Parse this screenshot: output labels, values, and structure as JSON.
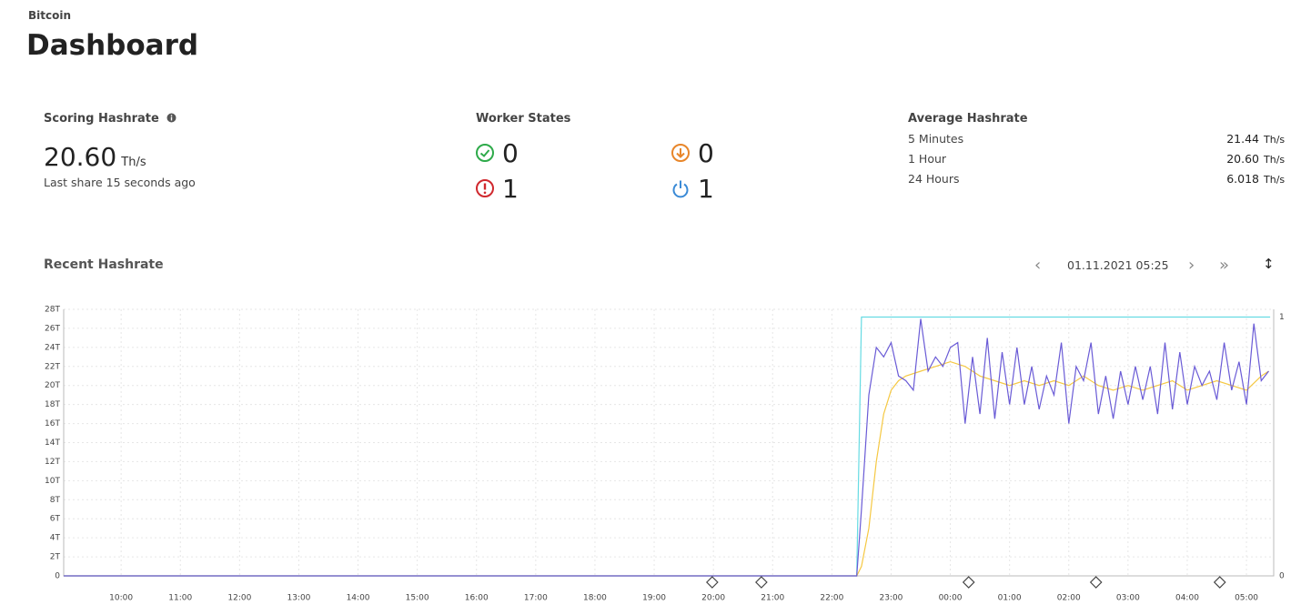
{
  "header": {
    "breadcrumb": "Bitcoin",
    "title": "Dashboard"
  },
  "scoring": {
    "label": "Scoring Hashrate",
    "value": "20.60",
    "unit": "Th/s",
    "note": "Last share 15 seconds ago"
  },
  "workers": {
    "label": "Worker States",
    "ok": 0,
    "low": 0,
    "dead": 1,
    "off": 1
  },
  "average": {
    "label": "Average Hashrate",
    "rows": [
      {
        "label": "5 Minutes",
        "value": "21.44",
        "unit": "Th/s"
      },
      {
        "label": "1 Hour",
        "value": "20.60",
        "unit": "Th/s"
      },
      {
        "label": "24 Hours",
        "value": "6.018",
        "unit": "Th/s"
      }
    ]
  },
  "recent": {
    "label": "Recent Hashrate",
    "date": "01.11.2021 05:25"
  },
  "chart_data": {
    "type": "line",
    "xlim": [
      9.03,
      29.46
    ],
    "xticks": [
      {
        "value": 10,
        "label": "10:00"
      },
      {
        "value": 11,
        "label": "11:00"
      },
      {
        "value": 12,
        "label": "12:00"
      },
      {
        "value": 13,
        "label": "13:00"
      },
      {
        "value": 14,
        "label": "14:00"
      },
      {
        "value": 15,
        "label": "15:00"
      },
      {
        "value": 16,
        "label": "16:00"
      },
      {
        "value": 17,
        "label": "17:00"
      },
      {
        "value": 18,
        "label": "18:00"
      },
      {
        "value": 19,
        "label": "19:00"
      },
      {
        "value": 20,
        "label": "20:00"
      },
      {
        "value": 21,
        "label": "21:00"
      },
      {
        "value": 22,
        "label": "22:00"
      },
      {
        "value": 23,
        "label": "23:00"
      },
      {
        "value": 24,
        "label": "00:00"
      },
      {
        "value": 25,
        "label": "01:00"
      },
      {
        "value": 26,
        "label": "02:00"
      },
      {
        "value": 27,
        "label": "03:00"
      },
      {
        "value": 28,
        "label": "04:00"
      },
      {
        "value": 29,
        "label": "05:00"
      }
    ],
    "ylim": [
      0,
      28
    ],
    "yticks": [
      0,
      {
        "value": 2,
        "label": "2T"
      },
      {
        "value": 4,
        "label": "4T"
      },
      {
        "value": 6,
        "label": "6T"
      },
      {
        "value": 8,
        "label": "8T"
      },
      {
        "value": 10,
        "label": "10T"
      },
      {
        "value": 12,
        "label": "12T"
      },
      {
        "value": 14,
        "label": "14T"
      },
      {
        "value": 16,
        "label": "16T"
      },
      {
        "value": 18,
        "label": "18T"
      },
      {
        "value": 20,
        "label": "20T"
      },
      {
        "value": 22,
        "label": "22T"
      },
      {
        "value": 24,
        "label": "24T"
      },
      {
        "value": 26,
        "label": "26T"
      },
      {
        "value": 28,
        "label": "28T"
      }
    ],
    "y2lim": [
      0,
      1.03
    ],
    "y2ticks": [
      0,
      1
    ],
    "grid": true,
    "series": [
      {
        "color": "#6a5bd6",
        "x": [
          9.03,
          22.42,
          22.5,
          22.625,
          22.75,
          22.875,
          23.0,
          23.125,
          23.25,
          23.375,
          23.5,
          23.625,
          23.75,
          23.875,
          24.0,
          24.125,
          24.25,
          24.375,
          24.5,
          24.625,
          24.75,
          24.875,
          25.0,
          25.125,
          25.25,
          25.375,
          25.5,
          25.625,
          25.75,
          25.875,
          26.0,
          26.125,
          26.25,
          26.375,
          26.5,
          26.625,
          26.75,
          26.875,
          27.0,
          27.125,
          27.25,
          27.375,
          27.5,
          27.625,
          27.75,
          27.875,
          28.0,
          28.125,
          28.25,
          28.375,
          28.5,
          28.625,
          28.75,
          28.875,
          29.0,
          29.125,
          29.25,
          29.375
        ],
        "values": [
          0,
          0,
          7,
          19,
          24,
          23,
          24.5,
          21,
          20.5,
          19.5,
          27,
          21.5,
          23,
          22,
          24,
          24.5,
          16,
          23,
          17,
          25,
          16.5,
          23.5,
          18,
          24,
          18,
          22,
          17.5,
          21,
          19,
          24.5,
          16,
          22,
          20.5,
          24.5,
          17,
          21,
          16.5,
          21.5,
          18,
          22,
          18.5,
          22,
          17,
          24.5,
          17.5,
          23.5,
          18,
          22,
          20,
          21.5,
          18.5,
          24.5,
          19.5,
          22.5,
          18,
          26.5,
          20.5,
          21.5
        ]
      },
      {
        "color": "#f5c842",
        "x": [
          9.03,
          22.42,
          22.5,
          22.625,
          22.75,
          22.875,
          23.0,
          23.125,
          23.25,
          23.5,
          23.75,
          24.0,
          24.25,
          24.5,
          24.75,
          25.0,
          25.25,
          25.5,
          25.75,
          26.0,
          26.25,
          26.5,
          26.75,
          27.0,
          27.25,
          27.5,
          27.75,
          28.0,
          28.25,
          28.5,
          28.75,
          29.0,
          29.25,
          29.375
        ],
        "values": [
          0,
          0,
          1,
          5,
          12,
          17,
          19.5,
          20.5,
          21,
          21.5,
          22,
          22.5,
          22,
          21,
          20.5,
          20,
          20.5,
          20,
          20.5,
          20,
          21,
          20,
          19.5,
          20,
          19.5,
          20,
          20.5,
          19.5,
          20,
          20.5,
          20,
          19.5,
          21,
          21.5
        ]
      },
      {
        "color": "#66dbe3",
        "axis": "y2",
        "x": [
          9.03,
          22.42,
          22.5,
          29.4
        ],
        "values": [
          0,
          0,
          1,
          1
        ]
      }
    ],
    "markers": [
      19.98,
      20.81,
      24.31,
      26.46,
      28.55
    ]
  }
}
